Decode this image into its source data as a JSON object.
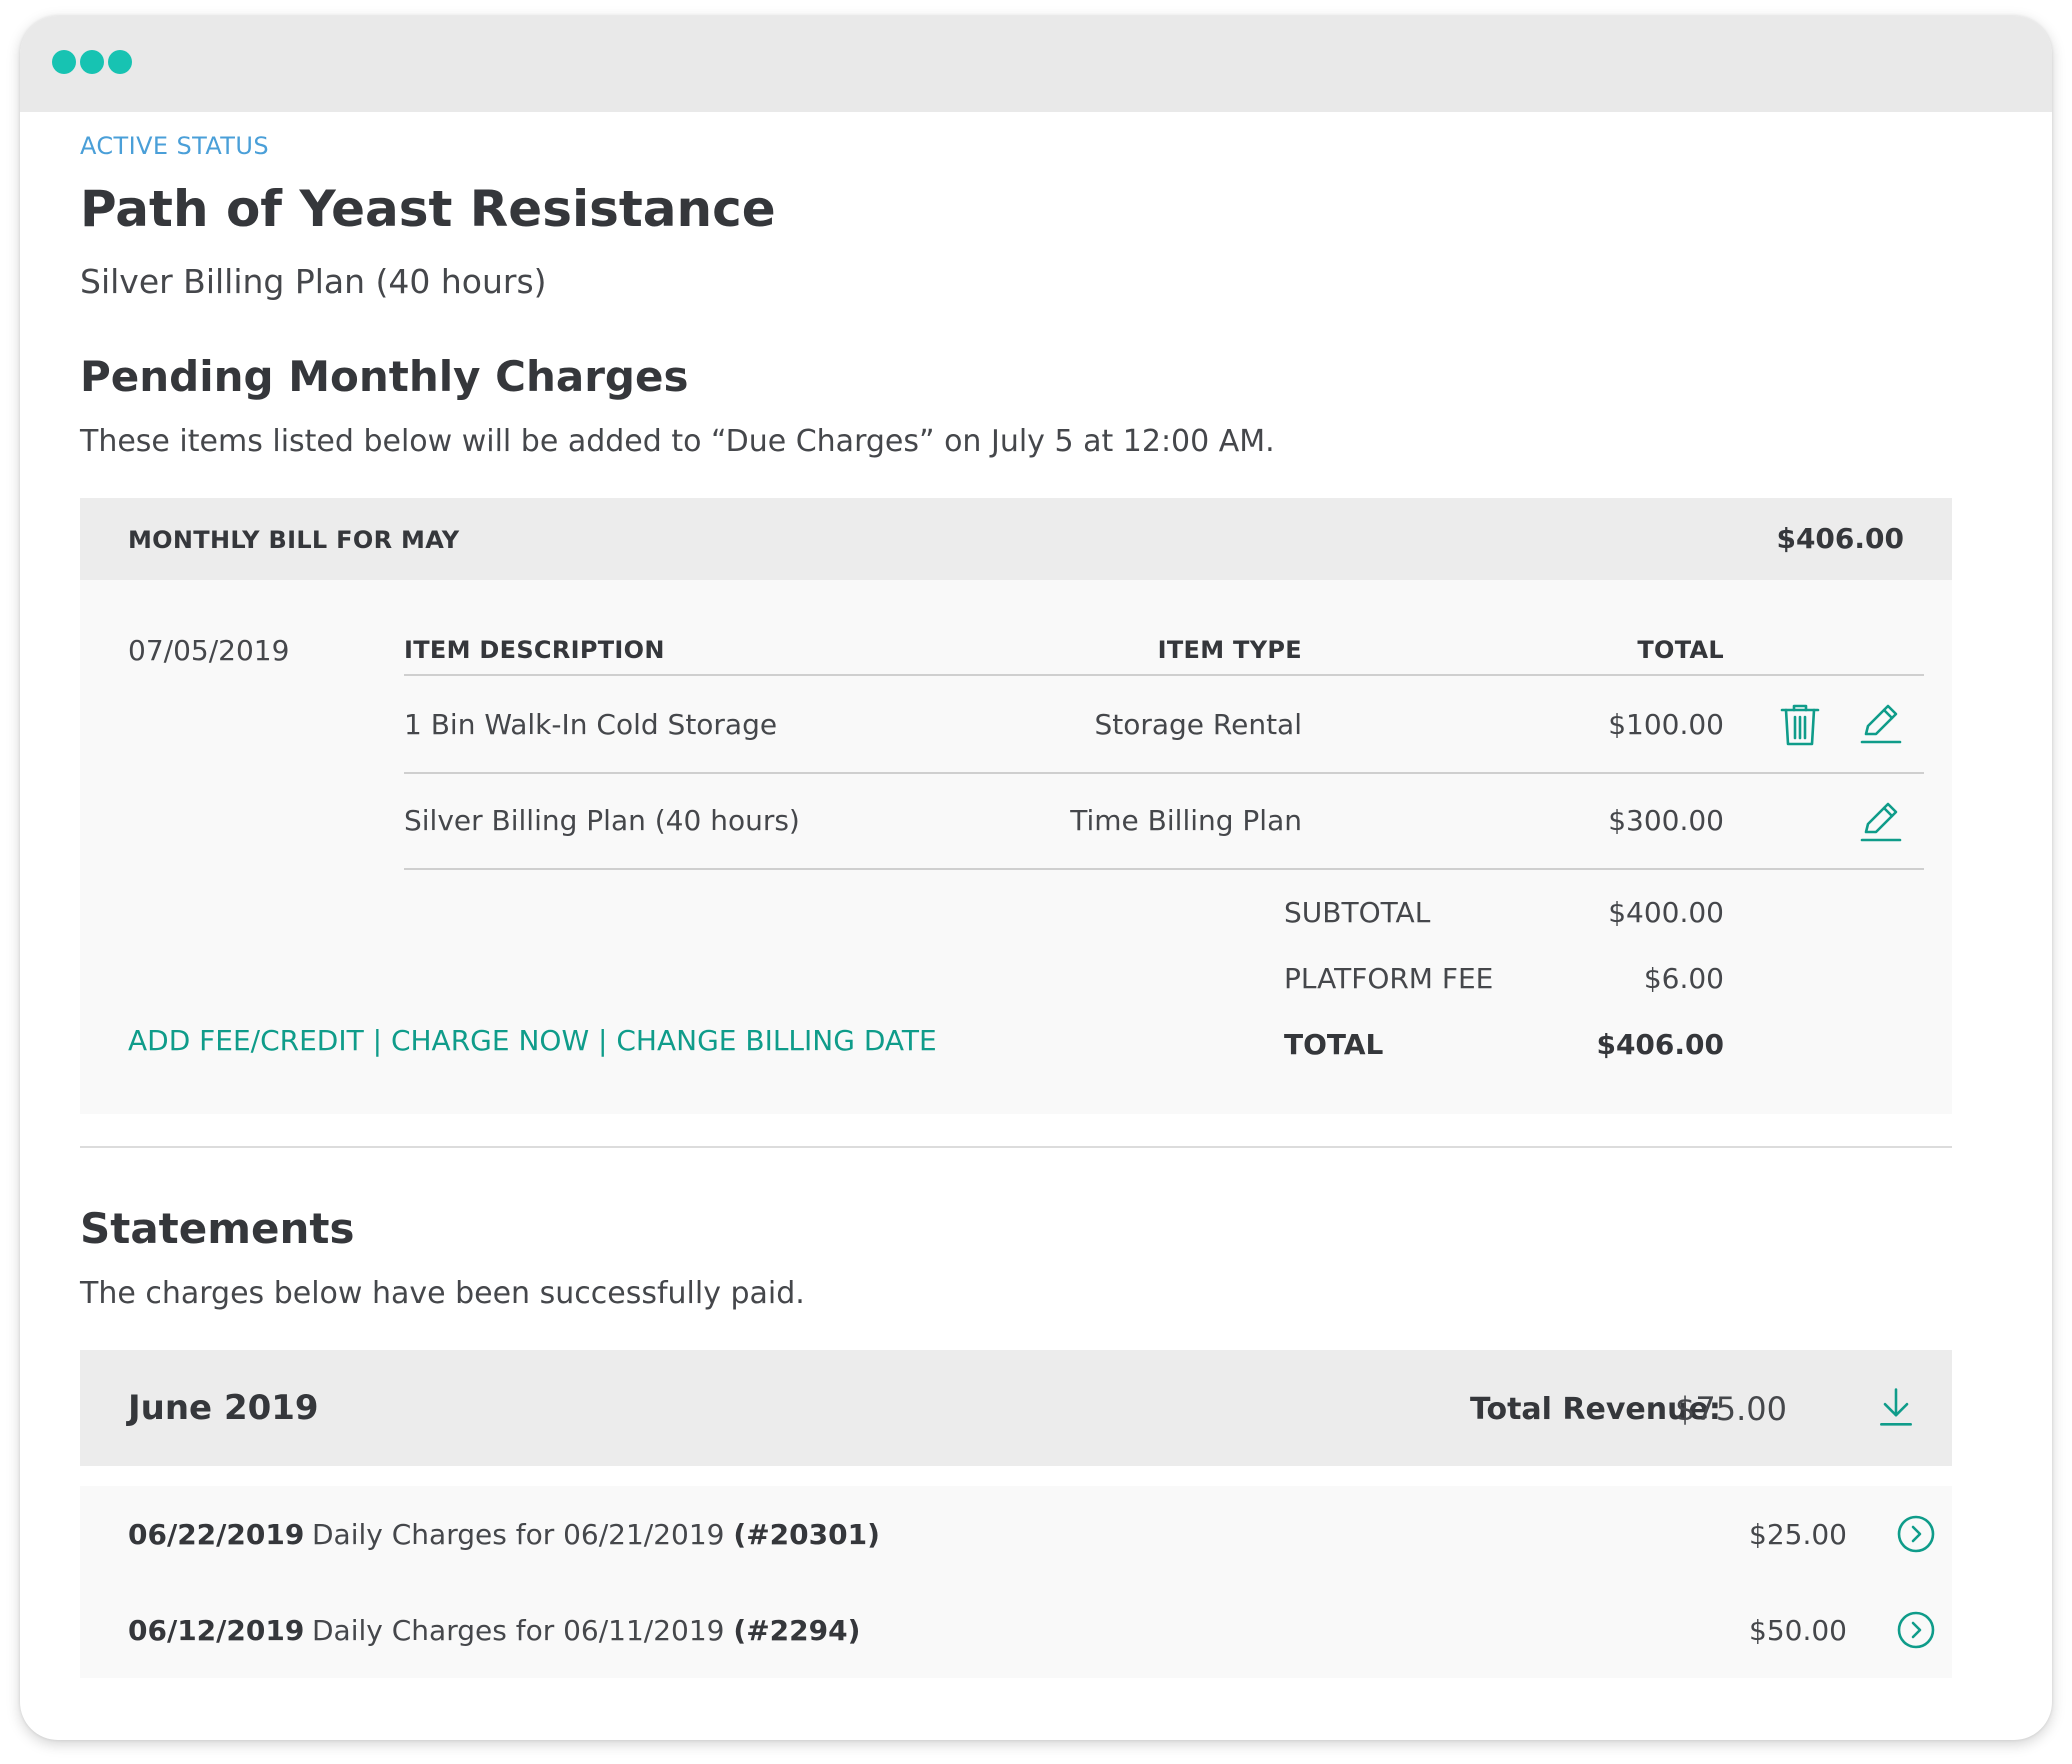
{
  "window": {
    "dots": [
      "dot",
      "dot",
      "dot"
    ],
    "accent_color": "#17c3b2"
  },
  "account": {
    "status": "ACTIVE STATUS",
    "name": "Path of Yeast Resistance",
    "plan": "Silver Billing Plan (40 hours)"
  },
  "pending": {
    "heading": "Pending Monthly Charges",
    "description": "These items listed below will be added to “Due Charges” on July 5 at 12:00 AM.",
    "bill": {
      "label": "MONTHLY BILL FOR MAY",
      "amount": "$406.00",
      "date": "07/05/2019",
      "columns": {
        "description": "ITEM DESCRIPTION",
        "type": "ITEM TYPE",
        "total": "TOTAL"
      },
      "items": [
        {
          "description": "1 Bin Walk-In Cold Storage",
          "type": "Storage Rental",
          "total": "$100.00",
          "actions": [
            "trash-icon",
            "pencil-icon"
          ]
        },
        {
          "description": "Silver Billing Plan (40 hours)",
          "type": "Time Billing Plan",
          "total": "$300.00",
          "actions": [
            "pencil-icon"
          ]
        }
      ],
      "summary": {
        "subtotal_label": "SUBTOTAL",
        "subtotal": "$400.00",
        "fee_label": "PLATFORM FEE",
        "fee": "$6.00",
        "total_label": "TOTAL",
        "total": "$406.00"
      },
      "links": {
        "add_fee": "ADD FEE/CREDIT",
        "separator": " | ",
        "charge_now": "CHARGE NOW",
        "change_date": "CHANGE BILLING DATE"
      }
    }
  },
  "statements": {
    "heading": "Statements",
    "description": "The charges below have been successfully paid.",
    "group": {
      "month": "June 2019",
      "revenue_label": "Total Revenue:",
      "revenue": "$75.00",
      "download_icon": "download-icon"
    },
    "rows": [
      {
        "date": "06/22/2019",
        "description": "Daily Charges for 06/21/2019",
        "id": "(#20301)",
        "amount": "$25.00",
        "icon": "chevron-right-circle-icon"
      },
      {
        "date": "06/12/2019",
        "description": "Daily Charges for 06/11/2019",
        "id": "(#2294)",
        "amount": "$50.00",
        "icon": "chevron-right-circle-icon"
      }
    ]
  },
  "colors": {
    "accent": "#0f9c8a",
    "status_blue": "#4a9fd8"
  }
}
